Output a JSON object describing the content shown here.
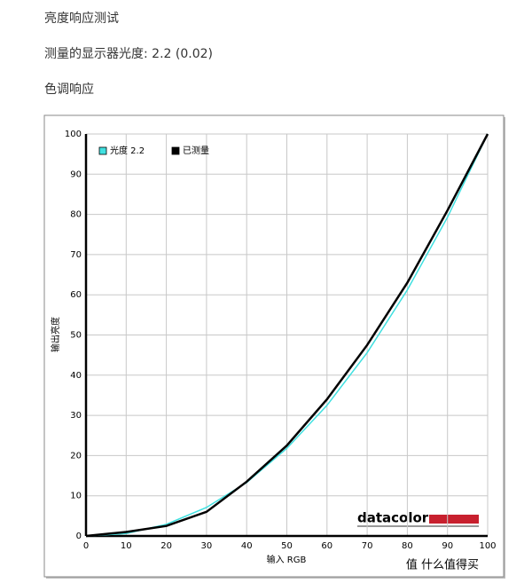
{
  "page": {
    "heading": "亮度响应测试",
    "measured": "测量的显示器光度: 2.2 (0.02)",
    "section": "色调响应",
    "watermark": "值 什么值得买"
  },
  "chart_data": {
    "type": "line",
    "xlabel": "输入 RGB",
    "ylabel": "输出亮度",
    "logo": "datacolor",
    "x": [
      0,
      10,
      20,
      30,
      40,
      50,
      60,
      70,
      80,
      90,
      100
    ],
    "series": [
      {
        "name": "光度 2.2",
        "color": "#40e0e0",
        "width": 1.5,
        "values": [
          0,
          0.6,
          2.9,
          7.1,
          13.3,
          21.8,
          32.5,
          45.6,
          61.2,
          79.3,
          100
        ]
      },
      {
        "name": "已测量",
        "color": "#000000",
        "width": 2.5,
        "values": [
          0,
          1,
          2.5,
          6,
          13.5,
          22.5,
          34,
          47.5,
          63,
          81,
          100
        ]
      }
    ],
    "xlim": [
      0,
      100
    ],
    "ylim": [
      0,
      100
    ],
    "xticks": [
      0,
      10,
      20,
      30,
      40,
      50,
      60,
      70,
      80,
      90,
      100
    ],
    "yticks": [
      0,
      10,
      20,
      30,
      40,
      50,
      60,
      70,
      80,
      90,
      100
    ],
    "grid": true,
    "legend": "top-left"
  }
}
